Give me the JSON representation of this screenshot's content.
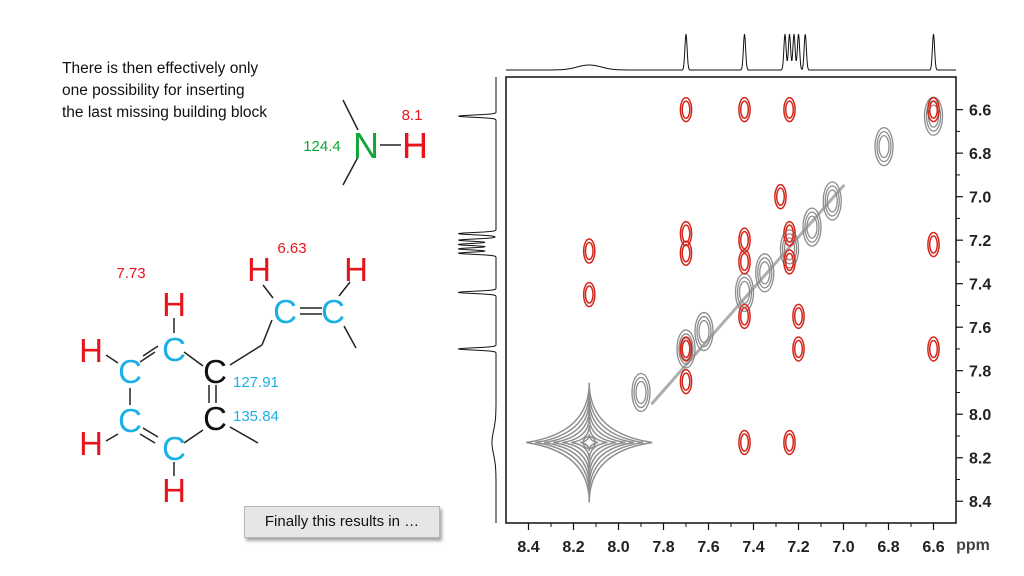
{
  "caption": {
    "lines": [
      "There is then effectively only",
      "one possibility for inserting",
      "the last missing building block"
    ]
  },
  "nh_fragment": {
    "n_label": "N",
    "h_label": "H",
    "n_shift": "124.4",
    "h_shift": "8.1"
  },
  "aromatic": {
    "c_label": "C",
    "h_label": "H",
    "shift_h_ring": "7.73",
    "shift_h_vinyl": "6.63",
    "shift_c1": "127.91",
    "shift_c2": "135.84"
  },
  "result_button": {
    "label": "Finally this results in …"
  },
  "colors": {
    "hydrogen": "#e8141c",
    "carbon": "#1bb0e3",
    "nitrogen": "#12a53a",
    "cross_peak_red": "#d3271d",
    "cross_peak_gray": "#8c8c8c"
  },
  "chart_data": {
    "type": "heatmap",
    "xlabel": "ppm",
    "x_ticks": [
      "8.4",
      "8.2",
      "8.0",
      "7.8",
      "7.6",
      "7.4",
      "7.2",
      "7.0",
      "6.8",
      "6.6"
    ],
    "y_ticks": [
      "6.6",
      "6.8",
      "7.0",
      "7.2",
      "7.4",
      "7.6",
      "7.8",
      "8.0",
      "8.2",
      "8.4"
    ],
    "xlim": [
      8.5,
      6.5
    ],
    "ylim": [
      6.45,
      8.5
    ],
    "top_projection_peaks": [
      7.7,
      7.44,
      7.26,
      7.24,
      7.22,
      7.2,
      7.17,
      6.6
    ],
    "left_projection_peaks": [
      6.63,
      7.17,
      7.2,
      7.22,
      7.24,
      7.26,
      7.44,
      7.7
    ],
    "red_peaks": [
      [
        7.7,
        6.6
      ],
      [
        7.44,
        6.6
      ],
      [
        7.24,
        6.6
      ],
      [
        6.6,
        6.6
      ],
      [
        7.7,
        7.17
      ],
      [
        7.7,
        7.26
      ],
      [
        7.44,
        7.2
      ],
      [
        7.44,
        7.3
      ],
      [
        7.24,
        7.17
      ],
      [
        7.24,
        7.3
      ],
      [
        6.6,
        7.22
      ],
      [
        8.13,
        7.25
      ],
      [
        8.13,
        7.45
      ],
      [
        7.7,
        7.7
      ],
      [
        7.44,
        7.55
      ],
      [
        7.2,
        7.7
      ],
      [
        6.6,
        7.7
      ],
      [
        7.7,
        7.85
      ],
      [
        7.44,
        8.13
      ],
      [
        7.24,
        8.13
      ],
      [
        7.2,
        7.55
      ],
      [
        7.28,
        7.0
      ]
    ],
    "gray_peaks": [
      [
        8.13,
        8.13
      ],
      [
        7.7,
        7.7
      ],
      [
        7.44,
        7.44
      ],
      [
        7.24,
        7.24
      ],
      [
        7.05,
        7.02
      ],
      [
        6.6,
        6.63
      ],
      [
        6.82,
        6.77
      ],
      [
        7.9,
        7.9
      ],
      [
        7.62,
        7.62
      ],
      [
        7.35,
        7.35
      ],
      [
        7.14,
        7.14
      ]
    ]
  }
}
